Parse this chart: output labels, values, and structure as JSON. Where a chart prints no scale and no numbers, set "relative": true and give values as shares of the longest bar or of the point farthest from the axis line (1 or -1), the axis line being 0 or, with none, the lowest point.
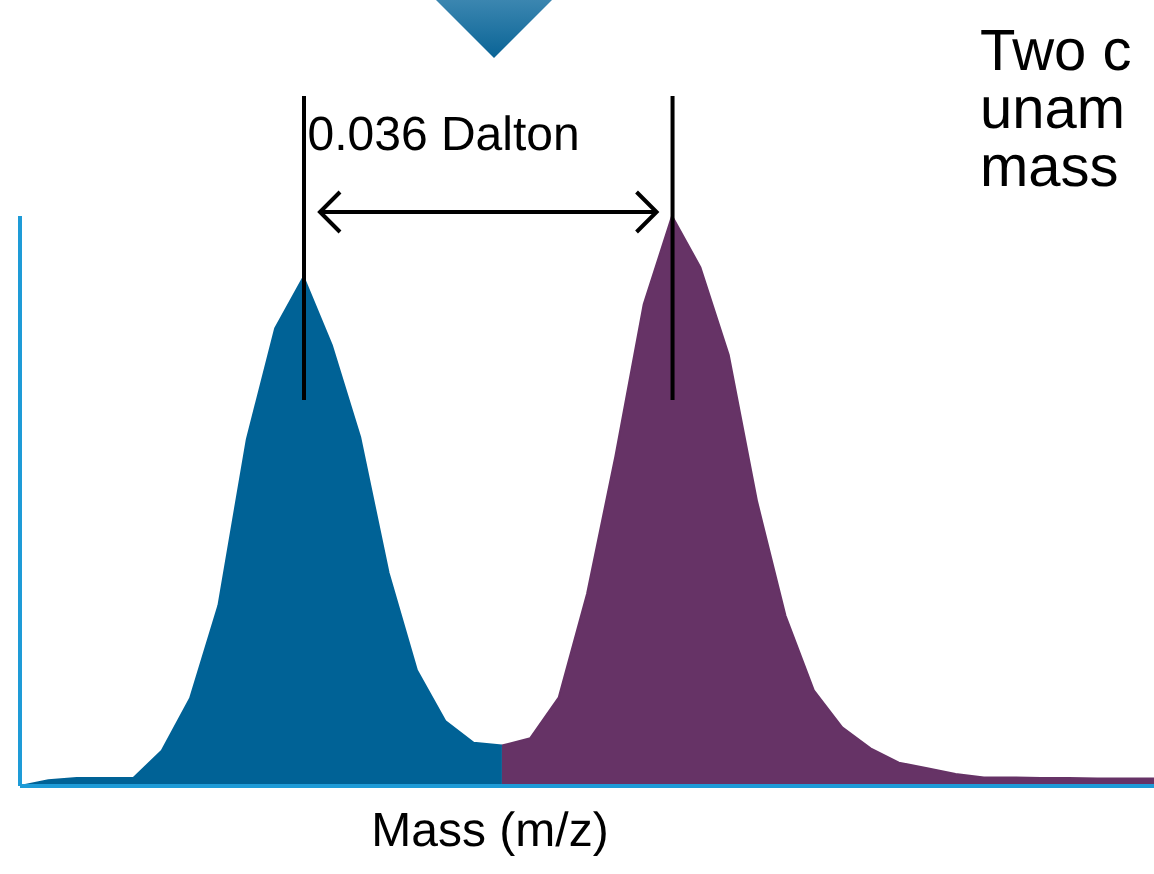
{
  "chart_data": {
    "type": "area",
    "relative": true,
    "xlabel": "Mass (m/z)",
    "annotations": [
      "0.036 Dalton",
      "Two c",
      "unam",
      "mass"
    ],
    "categories": [
      null,
      null,
      null,
      null,
      null,
      null,
      null,
      null,
      null,
      null,
      null,
      null,
      null,
      null,
      null,
      null,
      null,
      null,
      null,
      null,
      null,
      null,
      null,
      null,
      null,
      null,
      null,
      null,
      null,
      null,
      null,
      null,
      null,
      null,
      null,
      null,
      null,
      null,
      null,
      null,
      null
    ],
    "series": [
      {
        "color": "#006296",
        "values": [
          0,
          0.01,
          0.014,
          0.014,
          0.014,
          0.062,
          0.154,
          0.317,
          0.608,
          0.803,
          0.893,
          0.773,
          0.612,
          0.374,
          0.203,
          0.114,
          0.076,
          0.071,
          null,
          null,
          null,
          null,
          null,
          null,
          null,
          null,
          null,
          null,
          null,
          null,
          null,
          null,
          null,
          null,
          null,
          null,
          null,
          null,
          null,
          null,
          null
        ]
      },
      {
        "color": "#663366",
        "values": [
          null,
          null,
          null,
          null,
          null,
          null,
          null,
          null,
          null,
          null,
          null,
          null,
          null,
          null,
          null,
          null,
          null,
          0.071,
          0.084,
          0.155,
          0.337,
          0.578,
          0.845,
          1,
          0.91,
          0.756,
          0.499,
          0.299,
          0.168,
          0.103,
          0.066,
          0.041,
          0.031,
          0.021,
          0.015,
          0.015,
          0.014,
          0.014,
          0.013,
          0.013,
          0.013
        ]
      }
    ],
    "grid": false,
    "legend": false
  }
}
